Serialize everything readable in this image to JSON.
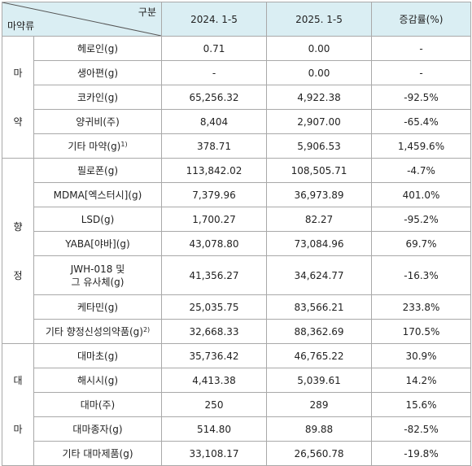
{
  "header": {
    "row_header": "구분",
    "col_header": "마약류",
    "period_2024": "2024. 1-5",
    "period_2025": "2025. 1-5",
    "change": "증감률(%)"
  },
  "groups": [
    {
      "label_chars": [
        "마",
        "약"
      ],
      "rows": [
        {
          "item": "헤로인(g)",
          "v2024": "0.71",
          "v2025": "0.00",
          "change": "-"
        },
        {
          "item": "생아편(g)",
          "v2024": "-",
          "v2025": "0.00",
          "change": "-"
        },
        {
          "item": "코카인(g)",
          "v2024": "65,256.32",
          "v2025": "4,922.38",
          "change": "-92.5%"
        },
        {
          "item": "양귀비(주)",
          "v2024": "8,404",
          "v2025": "2,907.00",
          "change": "-65.4%"
        },
        {
          "item": "기타 마약(g)",
          "note": "1)",
          "v2024": "378.71",
          "v2025": "5,906.53",
          "change": "1,459.6%"
        }
      ]
    },
    {
      "label_chars": [
        "향",
        "정"
      ],
      "rows": [
        {
          "item": "필로폰(g)",
          "v2024": "113,842.02",
          "v2025": "108,505.71",
          "change": "-4.7%"
        },
        {
          "item": "MDMA[엑스터시](g)",
          "v2024": "7,379.96",
          "v2025": "36,973.89",
          "change": "401.0%"
        },
        {
          "item": "LSD(g)",
          "v2024": "1,700.27",
          "v2025": "82.27",
          "change": "-95.2%"
        },
        {
          "item": "YABA[야바](g)",
          "v2024": "43,078.80",
          "v2025": "73,084.96",
          "change": "69.7%"
        },
        {
          "item": "JWH-018 및 그 유사체(g)",
          "v2024": "41,356.27",
          "v2025": "34,624.77",
          "change": "-16.3%"
        },
        {
          "item": "케타민(g)",
          "v2024": "25,035.75",
          "v2025": "83,566.21",
          "change": "233.8%"
        },
        {
          "item": "기타 향정신성의약품(g)",
          "note": "2)",
          "v2024": "32,668.33",
          "v2025": "88,362.69",
          "change": "170.5%"
        }
      ]
    },
    {
      "label_chars": [
        "대",
        "마"
      ],
      "rows": [
        {
          "item": "대마초(g)",
          "v2024": "35,736.42",
          "v2025": "46,765.22",
          "change": "30.9%"
        },
        {
          "item": "해시시(g)",
          "v2024": "4,413.38",
          "v2025": "5,039.61",
          "change": "14.2%"
        },
        {
          "item": "대마(주)",
          "v2024": "250",
          "v2025": "289",
          "change": "15.6%"
        },
        {
          "item": "대마종자(g)",
          "v2024": "514.80",
          "v2025": "89.88",
          "change": "-82.5%"
        },
        {
          "item": "기타 대마제품(g)",
          "v2024": "33,108.17",
          "v2025": "26,560.78",
          "change": "-19.8%"
        }
      ]
    }
  ]
}
